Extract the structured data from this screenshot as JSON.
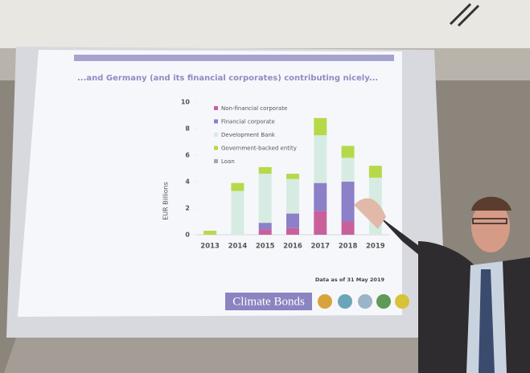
{
  "chart_data": {
    "type": "stacked-bar",
    "title": "...and Germany (and its financial corporates) contributing nicely...",
    "y_label": "EUR Billions",
    "categories": [
      "2013",
      "2014",
      "2015",
      "2016",
      "2017",
      "2018",
      "2019"
    ],
    "series": [
      {
        "name": "Non-financial corporate",
        "color": "#c9609c",
        "values": [
          0,
          0,
          0.4,
          0.5,
          1.8,
          1.0,
          0
        ]
      },
      {
        "name": "Financial corporate",
        "color": "#8c80c8",
        "values": [
          0,
          0,
          0.5,
          1.1,
          2.1,
          3.0,
          0
        ]
      },
      {
        "name": "Development Bank",
        "color": "#d6ece2",
        "values": [
          0,
          3.3,
          3.7,
          2.6,
          3.6,
          1.8,
          4.3
        ]
      },
      {
        "name": "Government-backed entity",
        "color": "#b6d94a",
        "values": [
          0.3,
          0.6,
          0.5,
          0.4,
          1.3,
          0.9,
          0.9
        ]
      },
      {
        "name": "Loan",
        "color": "#aaa4b6",
        "values": [
          0,
          0,
          0,
          0,
          0,
          0,
          0
        ]
      }
    ],
    "ylim": [
      0,
      10
    ],
    "yticks": [
      0,
      2,
      4,
      6,
      8,
      10
    ],
    "grid": false,
    "legend": "top-left",
    "source_note": "Data as of 31 May 2019",
    "logo": "Climate Bonds"
  }
}
